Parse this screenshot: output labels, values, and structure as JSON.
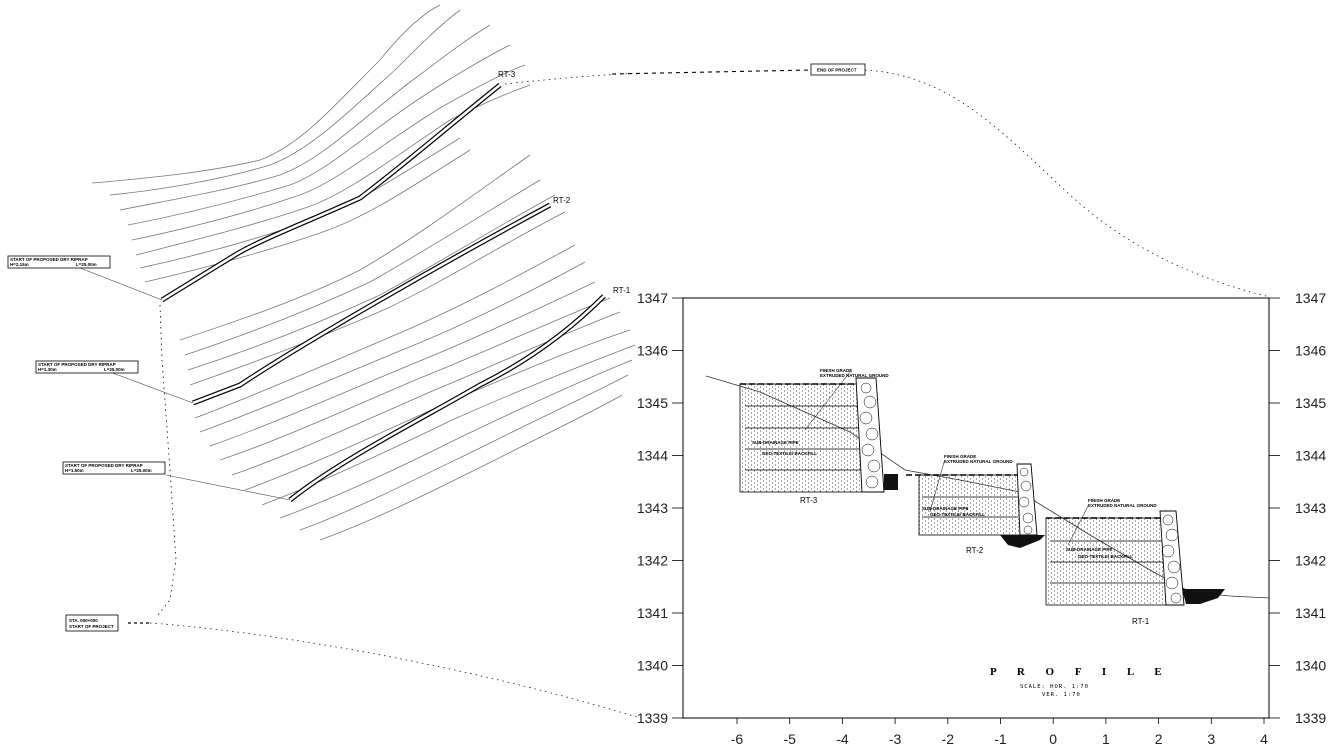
{
  "plan": {
    "end_label": "END OF PROJECT",
    "start_label_line1": "STA. 000+000",
    "start_label_line2": "START OF PROJECT",
    "callouts": [
      {
        "line1": "START OF PROPOSED DRY RIPRAP",
        "line2a": "H=2.15m",
        "line2b": "L=25.00m"
      },
      {
        "line1": "START OF PROPOSED DRY RIPRAP",
        "line2a": "H=1.30m",
        "line2b": "L=25.00m"
      },
      {
        "line1": "START OF PROPOSED DRY RIPRAP",
        "line2a": "H=1.50m",
        "line2b": "L=25.00m"
      }
    ],
    "rt_labels": [
      "RT-3",
      "RT-2",
      "RT-1"
    ]
  },
  "profile": {
    "title": "P R O F I L E",
    "scale_line1": "SCALE:  HOR. 1:70",
    "scale_line2": "VER.  1:70",
    "section_labels": [
      "RT-3",
      "RT-2",
      "RT-1"
    ],
    "y_ticks": [
      "1347",
      "1346",
      "1345",
      "1344",
      "1343",
      "1342",
      "1341",
      "1340",
      "1339"
    ],
    "x_ticks": [
      "-6",
      "-5",
      "-4",
      "-3",
      "-2",
      "-1",
      "0",
      "1",
      "2",
      "3",
      "4"
    ]
  }
}
